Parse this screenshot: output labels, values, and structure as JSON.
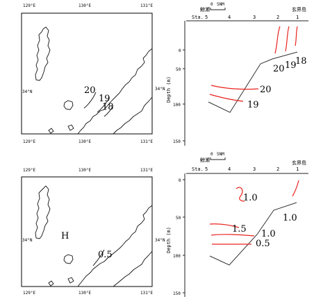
{
  "map_top": {
    "lon_labels_top": [
      "129°E",
      "130°E",
      "131°E"
    ],
    "lon_labels_bottom": [
      "129°E",
      "130°E",
      "131°E"
    ],
    "lat_left": "34°N",
    "lat_right": "34°N",
    "contours": [
      "20",
      "19",
      "18"
    ]
  },
  "map_bottom": {
    "lon_labels_top": [
      "129°E",
      "130°E",
      "131°E"
    ],
    "lon_labels_bottom": [
      "129°E",
      "130°E",
      "131°E"
    ],
    "lat_left": "34°N",
    "lat_right": "34°N",
    "high_label": "H",
    "contours": [
      "0.5"
    ]
  },
  "section_top": {
    "scale_zero": "0",
    "scale_unit": "5NM",
    "left_place": "鯨瀬",
    "right_place": "玄界島",
    "station_prefix": "Sta.",
    "stations": [
      "5",
      "4",
      "3",
      "2",
      "1"
    ],
    "ylabel": "Depth (m)",
    "yticks": [
      "0",
      "50",
      "100",
      "150"
    ],
    "contours": [
      "20",
      "19",
      "18",
      "20",
      "19"
    ]
  },
  "section_bottom": {
    "scale_zero": "0",
    "scale_unit": "5NM",
    "left_place": "鯨瀬",
    "right_place": "玄界島",
    "station_prefix": "Sta.",
    "stations": [
      "5",
      "4",
      "3",
      "2",
      "1"
    ],
    "ylabel": "Depth (m)",
    "yticks": [
      "0",
      "50",
      "100",
      "150"
    ],
    "contours": [
      "1.0",
      "1.0",
      "1.5",
      "1.0",
      "0.5"
    ]
  },
  "colors": {
    "contour": "#e8231d",
    "coast": "#111111"
  }
}
